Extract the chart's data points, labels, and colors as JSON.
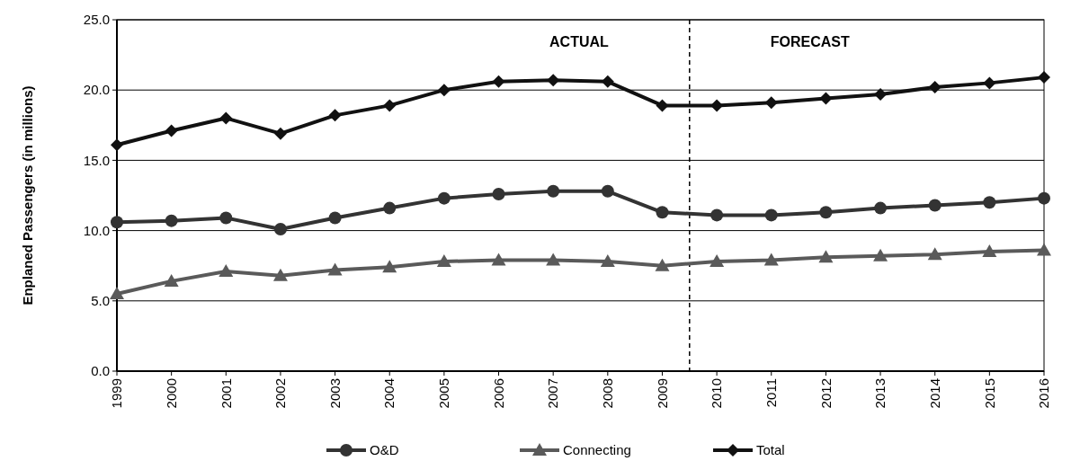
{
  "chart_data": {
    "type": "line",
    "ylabel": "Enplaned Passengers (in millions)",
    "x": [
      1999,
      2000,
      2001,
      2002,
      2003,
      2004,
      2005,
      2006,
      2007,
      2008,
      2009,
      2010,
      2011,
      2012,
      2013,
      2014,
      2015,
      2016
    ],
    "xlim": [
      1999,
      2016
    ],
    "xticks": [
      1999,
      2000,
      2001,
      2002,
      2003,
      2004,
      2005,
      2006,
      2007,
      2008,
      2009,
      2010,
      2011,
      2012,
      2013,
      2014,
      2015,
      2016
    ],
    "ylim": [
      0,
      25
    ],
    "yticks": [
      {
        "value": 0,
        "label": "0.0"
      },
      {
        "value": 5,
        "label": "5.0"
      },
      {
        "value": 10,
        "label": "10.0"
      },
      {
        "value": 15,
        "label": "15.0"
      },
      {
        "value": 20,
        "label": "20.0"
      },
      {
        "value": 25,
        "label": "25.0"
      }
    ],
    "grid": "y",
    "legend": "bottom",
    "line_style": "solid",
    "series": [
      {
        "name": "O&D",
        "color": "#333333",
        "marker": "circle",
        "values": [
          10.6,
          10.7,
          10.9,
          10.1,
          10.9,
          11.6,
          12.3,
          12.6,
          12.8,
          12.8,
          11.3,
          11.1,
          11.1,
          11.3,
          11.6,
          11.8,
          12.0,
          12.3
        ]
      },
      {
        "name": "Connecting",
        "color": "#5a5a5a",
        "marker": "triangle",
        "values": [
          5.5,
          6.4,
          7.1,
          6.8,
          7.2,
          7.4,
          7.8,
          7.9,
          7.9,
          7.8,
          7.5,
          7.8,
          7.9,
          8.1,
          8.2,
          8.3,
          8.5,
          8.6
        ]
      },
      {
        "name": "Total",
        "color": "#111111",
        "marker": "diamond",
        "values": [
          16.1,
          17.1,
          18.0,
          16.9,
          18.2,
          18.9,
          20.0,
          20.6,
          20.7,
          20.6,
          18.9,
          18.9,
          19.1,
          19.4,
          19.7,
          20.2,
          20.5,
          20.9
        ]
      }
    ],
    "ref_lines": [
      {
        "axis": "x",
        "value": 2009.5,
        "line_style": "dashed",
        "color": "#000000"
      }
    ],
    "annotations": [
      "ACTUAL",
      "FORECAST"
    ]
  }
}
